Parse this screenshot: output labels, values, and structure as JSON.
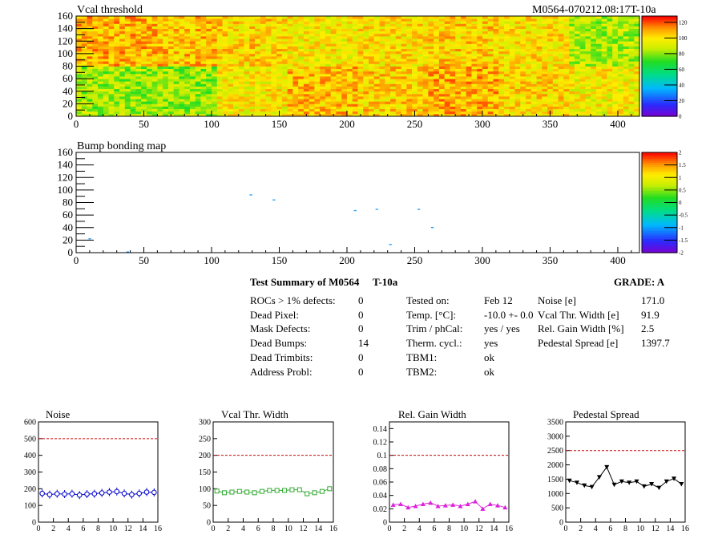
{
  "maps": [
    {
      "title": "Vcal threshold",
      "id_label": "M0564-070212.08:17T-10a",
      "x_ticks": [
        0,
        50,
        100,
        150,
        200,
        250,
        300,
        350,
        400
      ],
      "y_ticks": [
        0,
        20,
        40,
        60,
        80,
        100,
        120,
        140,
        160
      ],
      "z_ticks": [
        "0",
        "20",
        "40",
        "60",
        "80",
        "100",
        "120"
      ],
      "z_range": [
        0,
        128
      ]
    },
    {
      "title": "Bump bonding map",
      "x_ticks": [
        0,
        50,
        100,
        150,
        200,
        250,
        300,
        350,
        400
      ],
      "y_ticks": [
        0,
        20,
        40,
        60,
        80,
        100,
        120,
        140,
        160
      ],
      "z_ticks": [
        "2",
        "1.5",
        "1",
        "0.5",
        "0",
        "-0.5",
        "-1",
        "-1.5",
        "-2"
      ],
      "z_range": [
        -2,
        2
      ]
    }
  ],
  "chart_data": [
    {
      "type": "heatmap",
      "title": "Vcal threshold",
      "xlim": [
        0,
        416
      ],
      "ylim": [
        0,
        160
      ],
      "zlim": [
        0,
        128
      ],
      "roc_grid": {
        "columns": 8,
        "rows": 2,
        "col_width": 52,
        "row_height": 80
      },
      "roc_mean_levels": {
        "top": [
          108,
          106,
          102,
          98,
          100,
          103,
          100,
          85
        ],
        "bottom": [
          83,
          82,
          98,
          106,
          103,
          108,
          101,
          97
        ]
      }
    },
    {
      "type": "scatter",
      "title": "Bump bonding map",
      "xlim": [
        0,
        416
      ],
      "ylim": [
        0,
        160
      ],
      "points": [
        {
          "x": 10,
          "y": 22
        },
        {
          "x": 38,
          "y": 1
        },
        {
          "x": 129,
          "y": 92
        },
        {
          "x": 146,
          "y": 84
        },
        {
          "x": 206,
          "y": 67
        },
        {
          "x": 222,
          "y": 69
        },
        {
          "x": 232,
          "y": 13
        },
        {
          "x": 253,
          "y": 69
        },
        {
          "x": 263,
          "y": 40
        }
      ]
    },
    {
      "type": "line",
      "title": "Noise",
      "xlim": [
        0,
        16
      ],
      "ylim": [
        0,
        600
      ],
      "x_ticks": [
        0,
        2,
        4,
        6,
        8,
        10,
        12,
        14,
        16
      ],
      "y_ticks": [
        0,
        100,
        200,
        300,
        400,
        500,
        600
      ],
      "threshold": 500,
      "color": "#0000cc",
      "marker": "circle",
      "x": [
        0.5,
        1.5,
        2.5,
        3.5,
        4.5,
        5.5,
        6.5,
        7.5,
        8.5,
        9.5,
        10.5,
        11.5,
        12.5,
        13.5,
        14.5,
        15.5
      ],
      "values": [
        172,
        165,
        170,
        168,
        170,
        162,
        168,
        170,
        175,
        180,
        183,
        172,
        165,
        172,
        180,
        178
      ]
    },
    {
      "type": "line",
      "title": "Vcal Thr. Width",
      "xlim": [
        0,
        16
      ],
      "ylim": [
        0,
        300
      ],
      "x_ticks": [
        0,
        2,
        4,
        6,
        8,
        10,
        12,
        14,
        16
      ],
      "y_ticks": [
        0,
        50,
        100,
        150,
        200,
        250,
        300
      ],
      "threshold": 200,
      "color": "#33aa33",
      "marker": "square",
      "x": [
        0.5,
        1.5,
        2.5,
        3.5,
        4.5,
        5.5,
        6.5,
        7.5,
        8.5,
        9.5,
        10.5,
        11.5,
        12.5,
        13.5,
        14.5,
        15.5
      ],
      "values": [
        93,
        88,
        90,
        92,
        90,
        88,
        92,
        95,
        95,
        95,
        97,
        97,
        85,
        88,
        92,
        100
      ]
    },
    {
      "type": "line",
      "title": "Rel. Gain Width",
      "xlim": [
        0,
        16
      ],
      "ylim": [
        0,
        0.15
      ],
      "x_ticks": [
        0,
        2,
        4,
        6,
        8,
        10,
        12,
        14,
        16
      ],
      "y_ticks": [
        0,
        0.02,
        0.04,
        0.06,
        0.08,
        0.1,
        0.12,
        0.14
      ],
      "threshold": 0.1,
      "color": "#dd22dd",
      "marker": "triangle",
      "x": [
        0.5,
        1.5,
        2.5,
        3.5,
        4.5,
        5.5,
        6.5,
        7.5,
        8.5,
        9.5,
        10.5,
        11.5,
        12.5,
        13.5,
        14.5,
        15.5
      ],
      "values": [
        0.026,
        0.027,
        0.022,
        0.024,
        0.027,
        0.029,
        0.024,
        0.025,
        0.026,
        0.024,
        0.027,
        0.031,
        0.02,
        0.027,
        0.025,
        0.022
      ]
    },
    {
      "type": "line",
      "title": "Pedestal Spread",
      "xlim": [
        0,
        16
      ],
      "ylim": [
        0,
        3500
      ],
      "x_ticks": [
        0,
        2,
        4,
        6,
        8,
        10,
        12,
        14,
        16
      ],
      "y_ticks": [
        0,
        500,
        1000,
        1500,
        2000,
        2500,
        3000,
        3500
      ],
      "threshold": 2500,
      "color": "#000000",
      "marker": "triangle-down",
      "x": [
        0.5,
        1.5,
        2.5,
        3.5,
        4.5,
        5.5,
        6.5,
        7.5,
        8.5,
        9.5,
        10.5,
        11.5,
        12.5,
        13.5,
        14.5,
        15.5
      ],
      "values": [
        1450,
        1380,
        1280,
        1230,
        1570,
        1920,
        1310,
        1420,
        1380,
        1420,
        1250,
        1330,
        1200,
        1420,
        1520,
        1330
      ]
    }
  ],
  "summary": {
    "title": "Test Summary of M0564",
    "temp_label": "T-10a",
    "grade": "GRADE:  A",
    "defects": [
      {
        "label": "ROCs > 1% defects:",
        "value": "0"
      },
      {
        "label": "Dead Pixel:",
        "value": "0"
      },
      {
        "label": "Mask Defects:",
        "value": "0"
      },
      {
        "label": "Dead Bumps:",
        "value": "14"
      },
      {
        "label": "Dead Trimbits:",
        "value": "0"
      },
      {
        "label": "Address Probl:",
        "value": "0"
      }
    ],
    "conditions": [
      {
        "label": "Tested on:",
        "value": "Feb 12"
      },
      {
        "label": "Temp. [°C]:",
        "value": "-10.0 +- 0.0"
      },
      {
        "label": "Trim / phCal:",
        "value": "yes / yes"
      },
      {
        "label": "Therm. cycl.:",
        "value": "yes"
      },
      {
        "label": "TBM1:",
        "value": "ok"
      },
      {
        "label": "TBM2:",
        "value": "ok"
      }
    ],
    "quality": [
      {
        "label": "Noise [e]",
        "value": "171.0"
      },
      {
        "label": "Vcal Thr. Width [e]",
        "value": "91.9"
      },
      {
        "label": "Rel. Gain Width [%]",
        "value": "2.5"
      },
      {
        "label": "Pedestal Spread [e]",
        "value": "1397.7"
      }
    ]
  }
}
